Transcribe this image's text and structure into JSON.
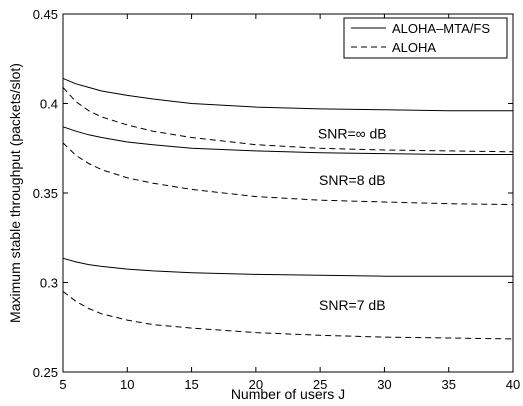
{
  "chart_data": {
    "type": "line",
    "title": "",
    "xlabel": "Number of users J",
    "ylabel": "Maximum stable throughput (packets/slot)",
    "xlim": [
      5,
      40
    ],
    "ylim": [
      0.25,
      0.45
    ],
    "xticks": [
      5,
      10,
      15,
      20,
      25,
      30,
      35,
      40
    ],
    "yticks": [
      0.25,
      0.3,
      0.35,
      0.4,
      0.45
    ],
    "xtick_labels": [
      "5",
      "10",
      "15",
      "20",
      "25",
      "30",
      "35",
      "40"
    ],
    "ytick_labels": [
      "0.25",
      "0.3",
      "0.35",
      "0.4",
      "0.45"
    ],
    "grid": false,
    "legend_position": "top-right",
    "legend": [
      {
        "label": "ALOHA–MTA/FS",
        "style": "solid"
      },
      {
        "label": "ALOHA",
        "style": "dashed"
      }
    ],
    "x": [
      5,
      6,
      7,
      8,
      10,
      12,
      15,
      20,
      25,
      30,
      35,
      40
    ],
    "series": [
      {
        "group": "SNR=∞ dB",
        "style": "solid",
        "values": [
          0.414,
          0.411,
          0.409,
          0.407,
          0.4045,
          0.4025,
          0.4,
          0.398,
          0.397,
          0.3965,
          0.396,
          0.396
        ]
      },
      {
        "group": "SNR=∞ dB",
        "style": "dashed",
        "values": [
          0.409,
          0.401,
          0.396,
          0.3925,
          0.388,
          0.3845,
          0.381,
          0.377,
          0.375,
          0.374,
          0.3735,
          0.373
        ]
      },
      {
        "group": "SNR=8 dB",
        "style": "solid",
        "values": [
          0.387,
          0.3845,
          0.3825,
          0.381,
          0.3785,
          0.377,
          0.375,
          0.3735,
          0.3725,
          0.372,
          0.3715,
          0.3715
        ]
      },
      {
        "group": "SNR=8 dB",
        "style": "dashed",
        "values": [
          0.378,
          0.371,
          0.3665,
          0.363,
          0.3585,
          0.3555,
          0.352,
          0.348,
          0.346,
          0.345,
          0.344,
          0.3435
        ]
      },
      {
        "group": "SNR=7 dB",
        "style": "solid",
        "values": [
          0.3135,
          0.3115,
          0.31,
          0.309,
          0.3075,
          0.3065,
          0.3055,
          0.3045,
          0.304,
          0.3035,
          0.3035,
          0.3035
        ]
      },
      {
        "group": "SNR=7 dB",
        "style": "dashed",
        "values": [
          0.295,
          0.2895,
          0.2855,
          0.2825,
          0.279,
          0.2765,
          0.2745,
          0.272,
          0.2705,
          0.2695,
          0.269,
          0.2685
        ]
      }
    ],
    "annotations": [
      {
        "text": "SNR=∞ dB",
        "x": 27.5,
        "y": 0.3805
      },
      {
        "text": "SNR=8 dB",
        "x": 27.5,
        "y": 0.3545
      },
      {
        "text": "SNR=7 dB",
        "x": 27.5,
        "y": 0.2845
      }
    ]
  }
}
